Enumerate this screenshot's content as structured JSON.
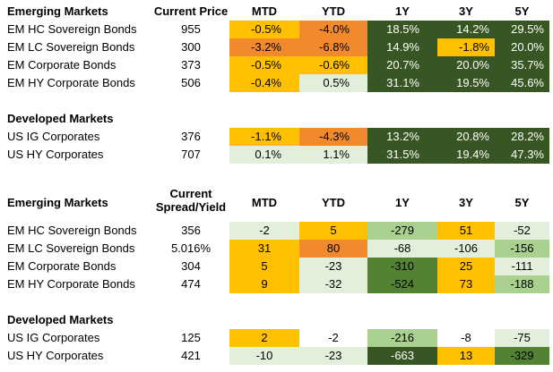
{
  "colors": {
    "light_green": "#e2efda",
    "mid_green": "#a9d08e",
    "dark_green": "#375623",
    "amber": "#ffc000",
    "orange": "#f08a2c",
    "white": "#ffffff"
  },
  "prices_table": {
    "columns": [
      "Current Price",
      "MTD",
      "YTD",
      "1Y",
      "3Y",
      "5Y"
    ],
    "sections": [
      {
        "title": "Emerging Markets",
        "rows": [
          {
            "name": "EM HC Sovereign Bonds",
            "price": "955",
            "mtd": "-0.5%",
            "ytd": "-4.0%",
            "y1": "18.5%",
            "y3": "14.2%",
            "y5": "29.5%"
          },
          {
            "name": "EM LC Sovereign Bonds",
            "price": "300",
            "mtd": "-3.2%",
            "ytd": "-6.8%",
            "y1": "14.9%",
            "y3": "-1.8%",
            "y5": "20.0%"
          },
          {
            "name": "EM Corporate Bonds",
            "price": "373",
            "mtd": "-0.5%",
            "ytd": "-0.6%",
            "y1": "20.7%",
            "y3": "20.0%",
            "y5": "35.7%"
          },
          {
            "name": "EM HY Corporate Bonds",
            "price": "506",
            "mtd": "-0.4%",
            "ytd": "0.5%",
            "y1": "31.1%",
            "y3": "19.5%",
            "y5": "45.6%"
          }
        ]
      },
      {
        "title": "Developed Markets",
        "rows": [
          {
            "name": "US IG Corporates",
            "price": "376",
            "mtd": "-1.1%",
            "ytd": "-4.3%",
            "y1": "13.2%",
            "y3": "20.8%",
            "y5": "28.2%"
          },
          {
            "name": "US HY Corporates",
            "price": "707",
            "mtd": "0.1%",
            "ytd": "1.1%",
            "y1": "31.5%",
            "y3": "19.4%",
            "y5": "47.3%"
          }
        ]
      }
    ]
  },
  "spreads_table": {
    "price_header_line1": "Current",
    "price_header_line2": "Spread/Yield",
    "columns": [
      "MTD",
      "YTD",
      "1Y",
      "3Y",
      "5Y"
    ],
    "sections": [
      {
        "title": "Emerging Markets",
        "rows": [
          {
            "name": "EM HC Sovereign Bonds",
            "price": "356",
            "mtd": "-2",
            "ytd": "5",
            "y1": "-279",
            "y3": "51",
            "y5": "-52"
          },
          {
            "name": "EM LC Sovereign Bonds",
            "price": "5.016%",
            "mtd": "31",
            "ytd": "80",
            "y1": "-68",
            "y3": "-106",
            "y5": "-156"
          },
          {
            "name": "EM Corporate Bonds",
            "price": "304",
            "mtd": "5",
            "ytd": "-23",
            "y1": "-310",
            "y3": "25",
            "y5": "-111"
          },
          {
            "name": "EM HY Corporate Bonds",
            "price": "474",
            "mtd": "9",
            "ytd": "-32",
            "y1": "-524",
            "y3": "73",
            "y5": "-188"
          }
        ]
      },
      {
        "title": "Developed Markets",
        "rows": [
          {
            "name": "US IG Corporates",
            "price": "125",
            "mtd": "2",
            "ytd": "-2",
            "y1": "-216",
            "y3": "-8",
            "y5": "-75"
          },
          {
            "name": "US HY Corporates",
            "price": "421",
            "mtd": "-10",
            "ytd": "-23",
            "y1": "-663",
            "y3": "13",
            "y5": "-329"
          }
        ]
      }
    ]
  }
}
